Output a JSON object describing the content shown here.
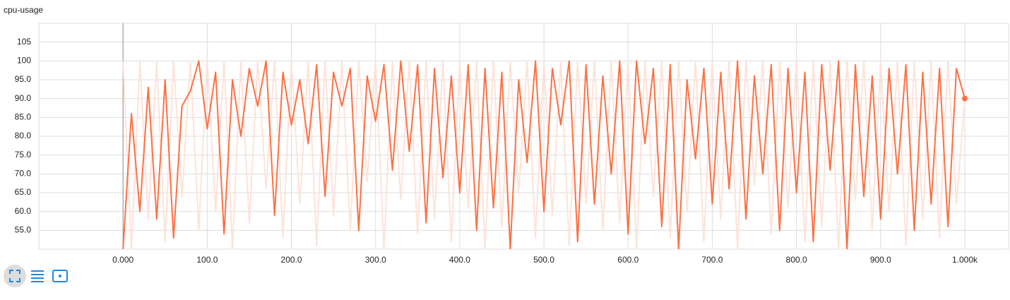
{
  "chart_data": {
    "type": "line",
    "title": "cpu-usage",
    "x": [
      0,
      10,
      20,
      30,
      40,
      50,
      60,
      70,
      80,
      90,
      100,
      110,
      120,
      130,
      140,
      150,
      160,
      170,
      180,
      190,
      200,
      210,
      220,
      230,
      240,
      250,
      260,
      270,
      280,
      290,
      300,
      310,
      320,
      330,
      340,
      350,
      360,
      370,
      380,
      390,
      400,
      410,
      420,
      430,
      440,
      450,
      460,
      470,
      480,
      490,
      500,
      510,
      520,
      530,
      540,
      550,
      560,
      570,
      580,
      590,
      600,
      610,
      620,
      630,
      640,
      650,
      660,
      670,
      680,
      690,
      700,
      710,
      720,
      730,
      740,
      750,
      760,
      770,
      780,
      790,
      800,
      810,
      820,
      830,
      840,
      850,
      860,
      870,
      880,
      890,
      900,
      910,
      920,
      930,
      940,
      950,
      960,
      970,
      980,
      990,
      1000
    ],
    "series": [
      {
        "color": "#fde3da",
        "values": [
          100,
          50,
          100,
          58,
          100,
          52,
          100,
          64,
          100,
          55,
          100,
          60,
          100,
          50,
          100,
          57,
          100,
          66,
          100,
          53,
          100,
          62,
          100,
          51,
          100,
          59,
          100,
          55,
          100,
          68,
          100,
          50,
          100,
          63,
          100,
          54,
          100,
          58,
          100,
          52,
          100,
          61,
          100,
          50,
          100,
          56,
          100,
          65,
          100,
          53,
          100,
          59,
          100,
          51,
          100,
          62,
          100,
          55,
          100,
          57,
          100,
          50,
          100,
          64,
          100,
          53,
          100,
          60,
          100,
          52,
          100,
          58,
          100,
          50,
          100,
          67,
          100,
          54,
          100,
          61,
          100,
          52,
          100,
          56,
          100,
          50,
          100,
          63,
          100,
          55,
          100,
          60,
          100,
          51,
          100,
          58,
          100,
          53,
          100,
          62,
          90
        ]
      },
      {
        "color": "#ff7043",
        "values": [
          50,
          86,
          60,
          93,
          58,
          95,
          53,
          88,
          92,
          100,
          82,
          97,
          54,
          95,
          80,
          98,
          88,
          100,
          59,
          97,
          83,
          95,
          78,
          99,
          64,
          97,
          88,
          98,
          55,
          96,
          84,
          99,
          71,
          100,
          76,
          99,
          57,
          98,
          69,
          96,
          65,
          99,
          55,
          98,
          61,
          97,
          50,
          95,
          73,
          100,
          60,
          98,
          83,
          100,
          52,
          99,
          62,
          96,
          70,
          100,
          54,
          100,
          78,
          98,
          56,
          99,
          50,
          95,
          74,
          98,
          62,
          97,
          66,
          100,
          58,
          96,
          70,
          99,
          55,
          98,
          65,
          97,
          52,
          99,
          71,
          100,
          50,
          99,
          64,
          96,
          58,
          98,
          70,
          99,
          55,
          97,
          62,
          98,
          56,
          98,
          90
        ]
      }
    ],
    "xlim": [
      -100,
      1052
    ],
    "ylim": [
      50,
      110
    ],
    "xticks": [
      {
        "value": 0,
        "label": "0.000"
      },
      {
        "value": 100,
        "label": "100.0"
      },
      {
        "value": 200,
        "label": "200.0"
      },
      {
        "value": 300,
        "label": "300.0"
      },
      {
        "value": 400,
        "label": "400.0"
      },
      {
        "value": 500,
        "label": "500.0"
      },
      {
        "value": 600,
        "label": "600.0"
      },
      {
        "value": 700,
        "label": "700.0"
      },
      {
        "value": 800,
        "label": "800.0"
      },
      {
        "value": 900,
        "label": "900.0"
      },
      {
        "value": 1000,
        "label": "1.000k"
      }
    ],
    "yticks": [
      {
        "value": 55,
        "label": "55.0"
      },
      {
        "value": 60,
        "label": "60.0"
      },
      {
        "value": 65,
        "label": "65.0"
      },
      {
        "value": 70,
        "label": "70.0"
      },
      {
        "value": 75,
        "label": "75.0"
      },
      {
        "value": 80,
        "label": "80.0"
      },
      {
        "value": 85,
        "label": "85.0"
      },
      {
        "value": 90,
        "label": "90.0"
      },
      {
        "value": 95,
        "label": "95.0"
      },
      100,
      105
    ],
    "grid": true
  }
}
